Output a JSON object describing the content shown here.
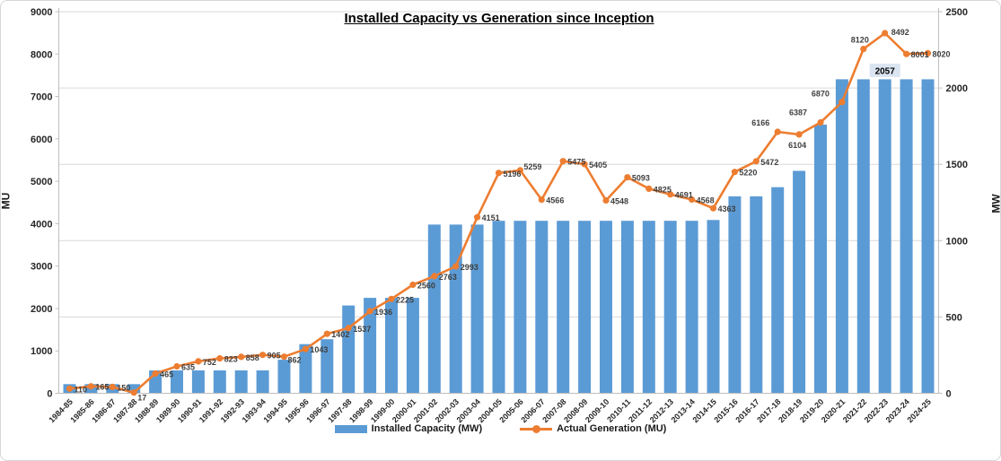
{
  "title": "Installed Capacity vs Generation since Inception",
  "left_axis": {
    "title": "MU",
    "min": 0,
    "max": 9000,
    "step": 1000,
    "tick_labels": [
      "0",
      "1000",
      "2000",
      "3000",
      "4000",
      "5000",
      "6000",
      "7000",
      "8000",
      "9000"
    ]
  },
  "right_axis": {
    "title": "MW",
    "min": 0,
    "max": 2500,
    "step": 500,
    "tick_labels": [
      "0",
      "500",
      "1000",
      "1500",
      "2000",
      "2500"
    ]
  },
  "legend": [
    {
      "label": "Installed Capacity (MW)",
      "type": "bar",
      "color": "#5B9BD5"
    },
    {
      "label": "Actual Generation (MU)",
      "type": "line",
      "color": "#ED7D31"
    }
  ],
  "colors": {
    "bar": "#5B9BD5",
    "line": "#ED7D31",
    "gridline": "#d9d9d9",
    "axis_line": "#bfbfbf",
    "tick_text": "#262626",
    "data_label_text": "#3f3f3f",
    "bar_label_bg": "#dbe5f1"
  },
  "chart_data": {
    "type": "bar+line combo",
    "title": "Installed Capacity vs Generation since Inception",
    "xlabel": "",
    "ylabel_left": "MU",
    "ylabel_right": "MW",
    "ylim_left": [
      0,
      9000
    ],
    "ylim_right": [
      0,
      2500
    ],
    "grid": "horizontal gridlines at every 500 MW of right axis",
    "legend_position": "bottom",
    "categories": [
      "1984-85",
      "1985-86",
      "1986-87",
      "1987-88",
      "1988-89",
      "1989-90",
      "1990-91",
      "1991-92",
      "1992-93",
      "1993-94",
      "1994-95",
      "1995-96",
      "1996-97",
      "1997-98",
      "1998-99",
      "1999-00",
      "2000-01",
      "2001-02",
      "2002-03",
      "2003-04",
      "2004-05",
      "2005-06",
      "2006-07",
      "2007-08",
      "2008-09",
      "2009-10",
      "2010-11",
      "2011-12",
      "2012-13",
      "2013-14",
      "2014-15",
      "2015-16",
      "2016-17",
      "2017-18",
      "2018-19",
      "2019-20",
      "2020-21",
      "2021-22",
      "2022-23",
      "2023-24",
      "2024-25"
    ],
    "series": [
      {
        "name": "Installed Capacity (MW)",
        "type": "bar",
        "axis": "right",
        "color": "#5B9BD5",
        "note": "bar heights estimated from pixels; only the 2022-23 bar carries a visible data label (2057)",
        "values": [
          60,
          60,
          60,
          60,
          150,
          150,
          150,
          150,
          150,
          150,
          220,
          322,
          354,
          575,
          625,
          625,
          625,
          1105,
          1105,
          1105,
          1130,
          1130,
          1130,
          1130,
          1130,
          1130,
          1130,
          1130,
          1130,
          1130,
          1135,
          1290,
          1290,
          1350,
          1457,
          1760,
          2057,
          2057,
          2057,
          2057,
          2057
        ]
      },
      {
        "name": "Actual Generation (MU)",
        "type": "line",
        "axis": "left",
        "color": "#ED7D31",
        "marker": "circle",
        "values": [
          110,
          165,
          150,
          17,
          465,
          635,
          752,
          823,
          858,
          905,
          862,
          1043,
          1402,
          1537,
          1936,
          2225,
          2560,
          2763,
          2993,
          4151,
          5196,
          5259,
          4566,
          5475,
          5405,
          4548,
          5093,
          4825,
          4691,
          4568,
          4363,
          5220,
          5472,
          6166,
          6104,
          6387,
          6870,
          8120,
          8492,
          8001,
          8020
        ],
        "data_labels": [
          "110",
          "165",
          "150",
          "17",
          "465",
          "635",
          "752",
          "823",
          "858",
          "905",
          "862",
          "1043",
          "1402",
          "1537",
          "1936",
          "2225",
          "2560",
          "2763",
          "2993",
          "4151",
          "5196",
          "5259",
          "4566",
          "5475",
          "5405",
          "4548",
          "5093",
          "4825",
          "4691",
          "4568",
          "4363",
          "5220",
          "5472",
          "6166",
          "6104",
          "6387",
          "6870",
          "8120",
          "8492",
          "8001",
          "8020"
        ],
        "label_offset_default": [
          5,
          4
        ],
        "label_offsets": {
          "3": [
            4,
            9
          ],
          "10": [
            4,
            7
          ],
          "21": [
            4,
            -1
          ],
          "33": [
            -29,
            -7
          ],
          "34": [
            -12,
            15
          ],
          "35": [
            -35,
            -8
          ],
          "36": [
            -34,
            -6
          ],
          "37": [
            -14,
            -7
          ],
          "38": [
            7,
            2
          ]
        }
      }
    ],
    "bar_label": {
      "text": "2057",
      "category": "2022-23",
      "index": 38,
      "highlighted": true
    }
  }
}
